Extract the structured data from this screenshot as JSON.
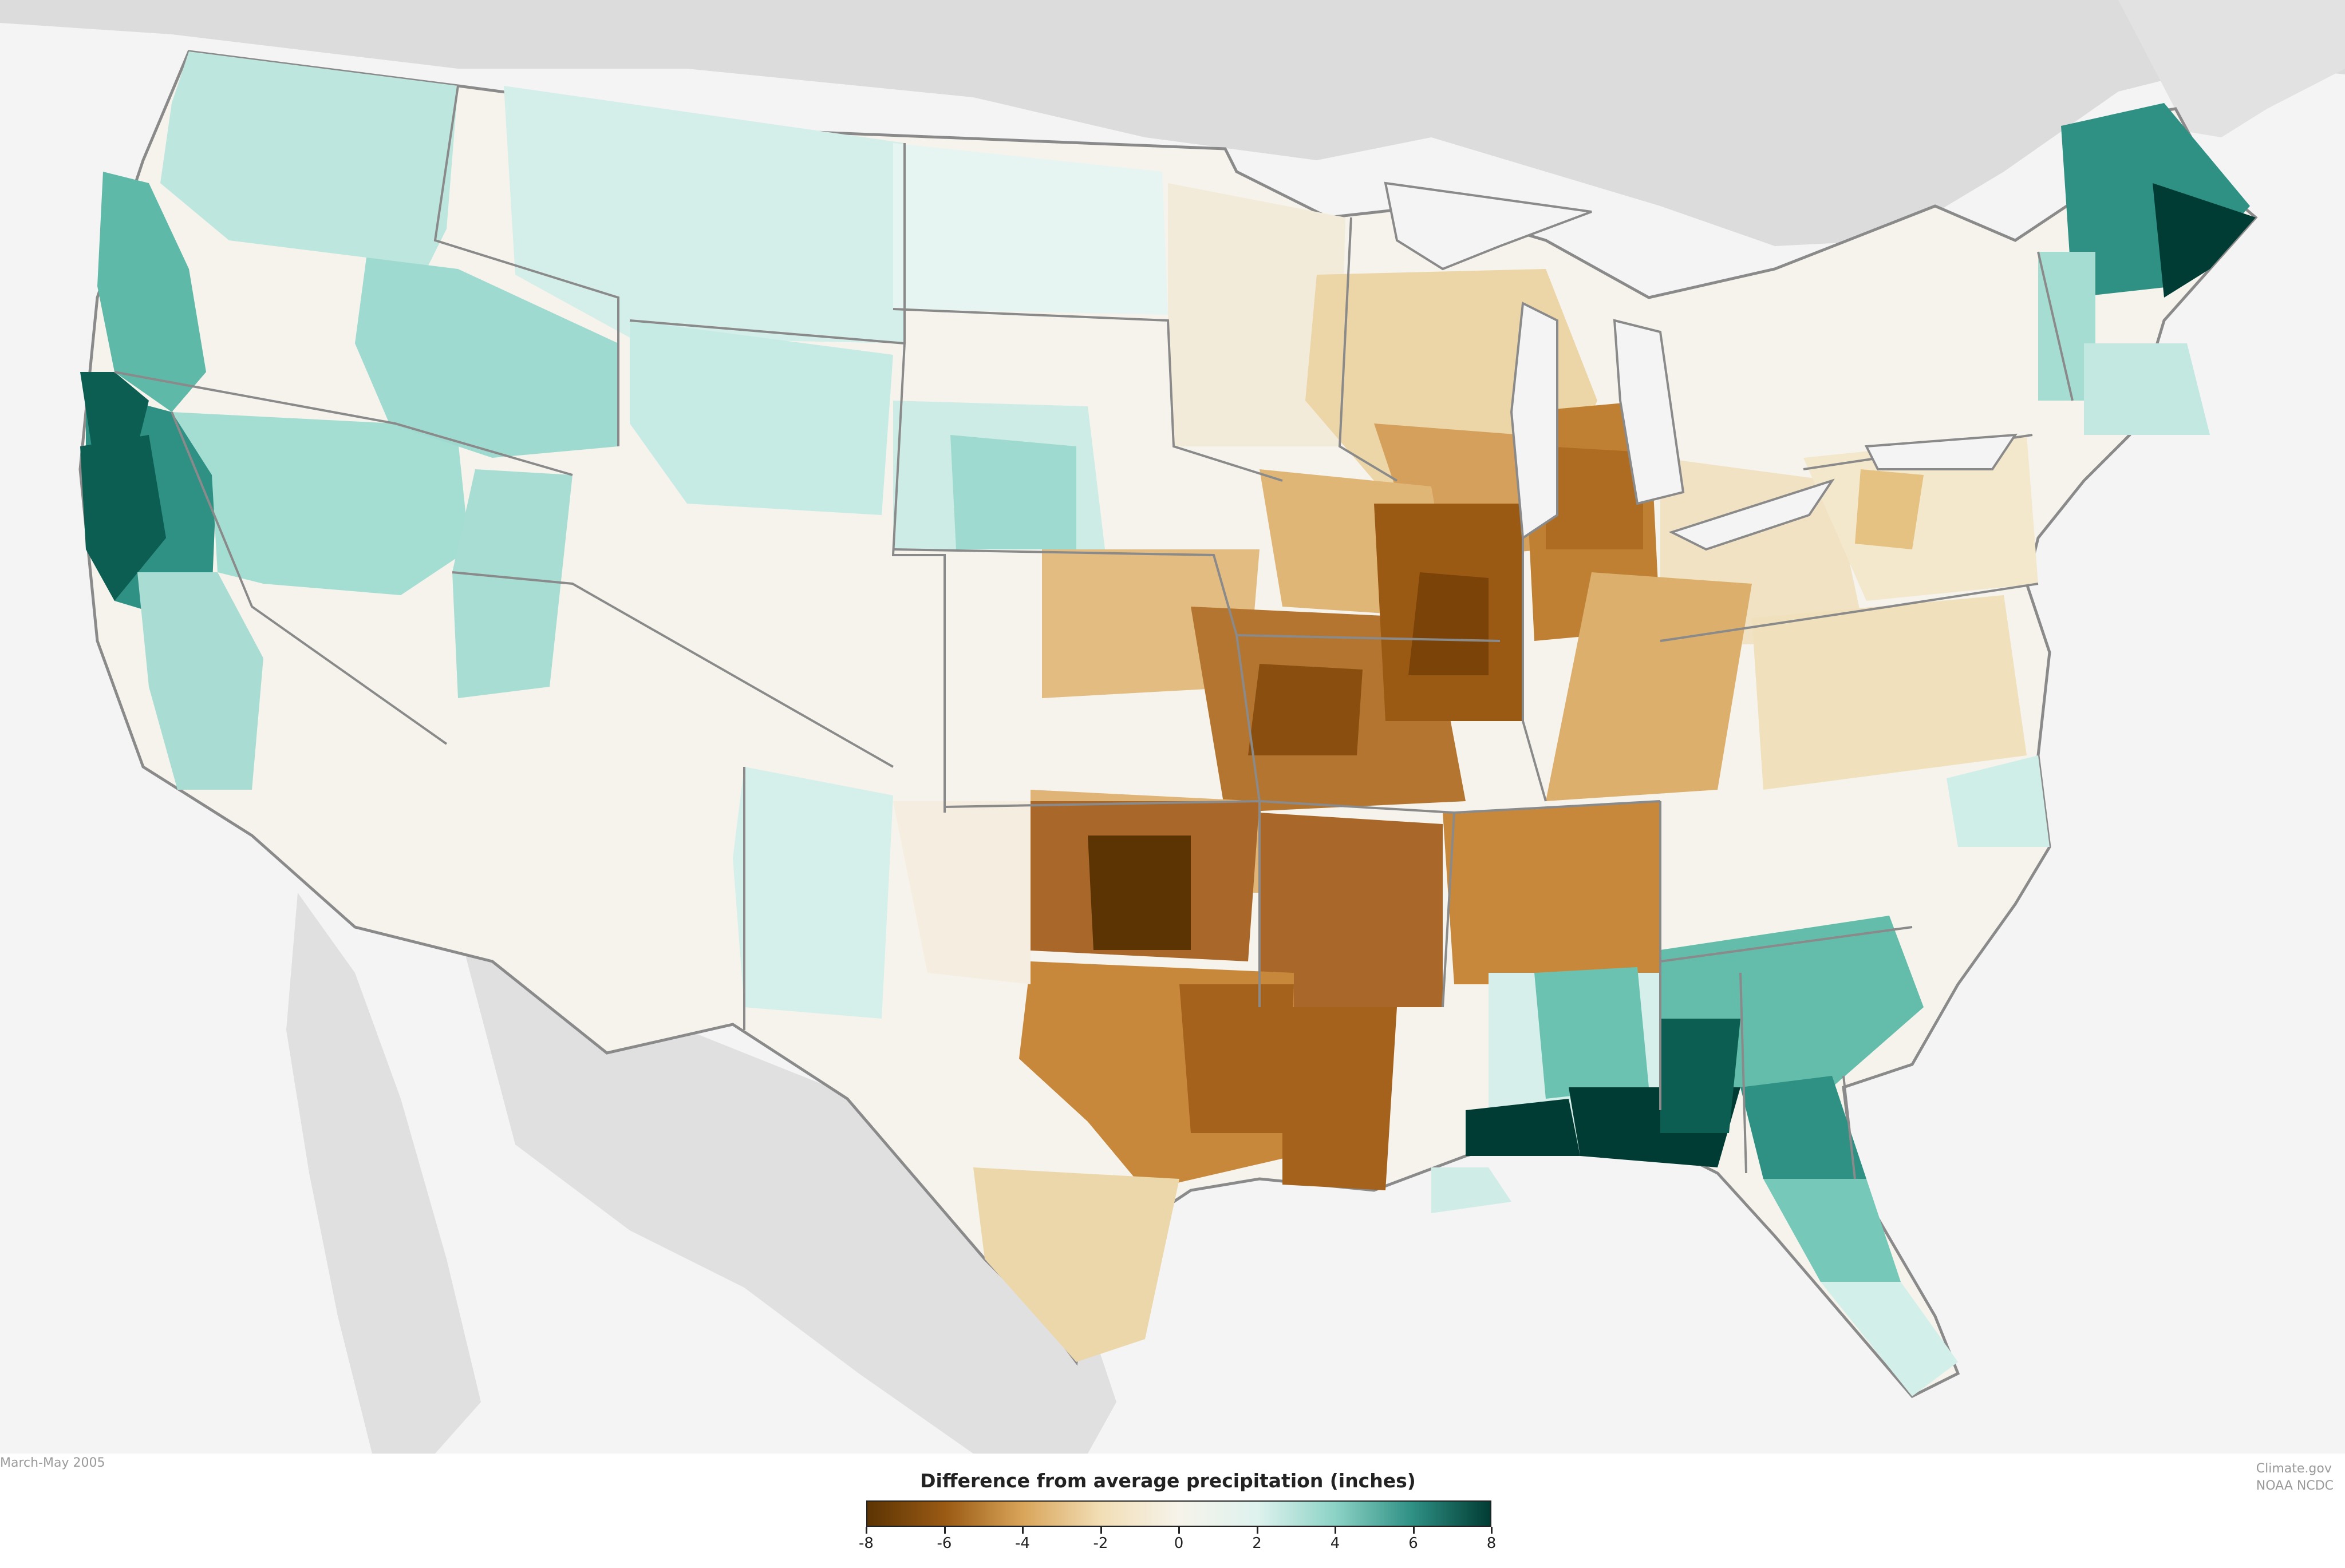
{
  "map": {
    "date_label": "March-May 2005",
    "legend": {
      "title": "Difference from average precipitation (inches)",
      "ticks": [
        "-8",
        "-6",
        "-4",
        "-2",
        "0",
        "2",
        "4",
        "6",
        "8"
      ],
      "min": -8,
      "max": 8,
      "colors": [
        "#5c3403",
        "#9a5a14",
        "#d9a55a",
        "#f2deb6",
        "#f6f3ea",
        "#dff2ee",
        "#8dd3c6",
        "#2f9084",
        "#013c34"
      ]
    },
    "credit_lines": [
      "Climate.gov",
      "NOAA NCDC"
    ],
    "colors": {
      "land_outside": "#dcdcdc",
      "water": "#f4f4f4",
      "border": "#8a8a8a"
    }
  }
}
